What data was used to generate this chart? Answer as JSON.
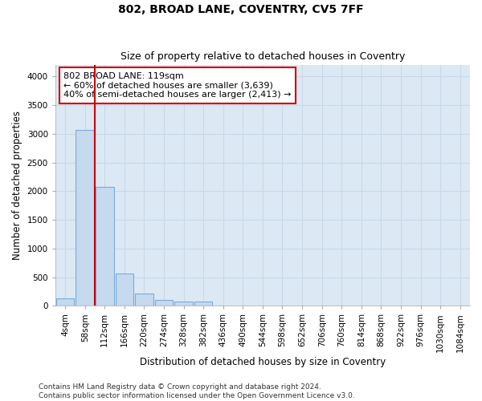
{
  "title": "802, BROAD LANE, COVENTRY, CV5 7FF",
  "subtitle": "Size of property relative to detached houses in Coventry",
  "xlabel": "Distribution of detached houses by size in Coventry",
  "ylabel": "Number of detached properties",
  "bar_values": [
    130,
    3060,
    2080,
    560,
    215,
    100,
    80,
    70,
    0,
    0,
    0,
    0,
    0,
    0,
    0,
    0,
    0,
    0,
    0,
    0,
    0
  ],
  "bar_labels": [
    "4sqm",
    "58sqm",
    "112sqm",
    "166sqm",
    "220sqm",
    "274sqm",
    "328sqm",
    "382sqm",
    "436sqm",
    "490sqm",
    "544sqm",
    "598sqm",
    "652sqm",
    "706sqm",
    "760sqm",
    "814sqm",
    "868sqm",
    "922sqm",
    "976sqm",
    "1030sqm",
    "1084sqm"
  ],
  "bar_color": "#c5d9ef",
  "bar_edgecolor": "#7aabda",
  "vline_x": 2,
  "vline_color": "#cc0000",
  "annotation_text": "802 BROAD LANE: 119sqm\n← 60% of detached houses are smaller (3,639)\n40% of semi-detached houses are larger (2,413) →",
  "annotation_box_edgecolor": "#cc0000",
  "annotation_box_facecolor": "#ffffff",
  "ylim": [
    0,
    4200
  ],
  "yticks": [
    0,
    500,
    1000,
    1500,
    2000,
    2500,
    3000,
    3500,
    4000
  ],
  "plot_bg_color": "#dce9f5",
  "fig_bg_color": "#ffffff",
  "grid_color": "#c8d8e8",
  "footer_line1": "Contains HM Land Registry data © Crown copyright and database right 2024.",
  "footer_line2": "Contains public sector information licensed under the Open Government Licence v3.0.",
  "title_fontsize": 10,
  "subtitle_fontsize": 9,
  "axis_label_fontsize": 8.5,
  "tick_fontsize": 7.5,
  "annotation_fontsize": 8,
  "footer_fontsize": 6.5
}
